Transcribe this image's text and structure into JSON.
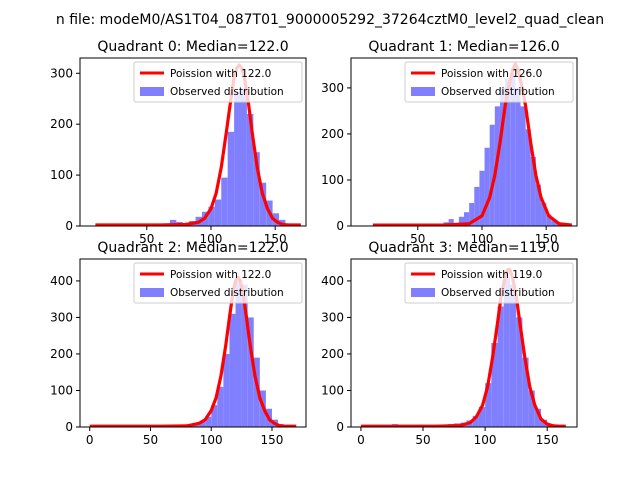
{
  "figure": {
    "suptitle": "n file: modeM0/AS1T04_087T01_9000005292_37264cztM0_level2_quad_clean"
  },
  "colors": {
    "fit_line": "#ff0000",
    "histogram": "#8080ff",
    "axis": "#000000"
  },
  "chart_data": [
    {
      "type": "bar",
      "title": "Quadrant 0: Median=122.0",
      "xlim": [
        -2,
        174
      ],
      "ylim": [
        0,
        330
      ],
      "xticks": [
        50,
        100,
        150
      ],
      "xtick_labels": [
        "50",
        "100",
        "150"
      ],
      "yticks": [
        0,
        100,
        200,
        300
      ],
      "ytick_labels": [
        "0",
        "100",
        "200",
        "300"
      ],
      "legend": {
        "placement": "top-right",
        "entries": [
          "Poission with 122.0",
          "Observed distribution"
        ]
      },
      "series": [
        {
          "name": "Observed distribution",
          "kind": "histogram",
          "bins": [
            [
              68,
              73,
              12
            ],
            [
              73,
              78,
              8
            ],
            [
              78,
              83,
              5
            ],
            [
              83,
              88,
              10
            ],
            [
              88,
              93,
              18
            ],
            [
              93,
              98,
              28
            ],
            [
              98,
              103,
              38
            ],
            [
              103,
              108,
              52
            ],
            [
              108,
              113,
              95
            ],
            [
              113,
              118,
              185
            ],
            [
              118,
              123,
              262
            ],
            [
              123,
              128,
              270
            ],
            [
              128,
              133,
              220
            ],
            [
              133,
              138,
              145
            ],
            [
              138,
              143,
              85
            ],
            [
              143,
              148,
              50
            ],
            [
              148,
              153,
              25
            ],
            [
              153,
              158,
              12
            ],
            [
              158,
              163,
              5
            ],
            [
              163,
              168,
              2
            ]
          ]
        },
        {
          "name": "Poission with 122.0",
          "kind": "line",
          "x": [
            10,
            60,
            80,
            90,
            95,
            100,
            104,
            108,
            112,
            115,
            118,
            120,
            122,
            124,
            126,
            129,
            132,
            136,
            140,
            144,
            148,
            152,
            156,
            160,
            170
          ],
          "y": [
            2,
            2,
            3,
            7,
            15,
            34,
            64,
            115,
            185,
            240,
            292,
            310,
            316,
            310,
            292,
            245,
            185,
            115,
            64,
            34,
            15,
            7,
            3,
            2,
            2
          ]
        }
      ]
    },
    {
      "type": "bar",
      "title": "Quadrant 1: Median=126.0",
      "xlim": [
        -2,
        174
      ],
      "ylim": [
        0,
        365
      ],
      "xticks": [
        50,
        100,
        150
      ],
      "xtick_labels": [
        "50",
        "100",
        "150"
      ],
      "yticks": [
        0,
        100,
        200,
        300
      ],
      "ytick_labels": [
        "0",
        "100",
        "200",
        "300"
      ],
      "legend": {
        "placement": "top-right",
        "entries": [
          "Poission with 126.0",
          "Observed distribution"
        ]
      },
      "series": [
        {
          "name": "Observed distribution",
          "kind": "histogram",
          "bins": [
            [
              70,
              74,
              8
            ],
            [
              74,
              78,
              15
            ],
            [
              78,
              82,
              5
            ],
            [
              82,
              86,
              20
            ],
            [
              86,
              90,
              30
            ],
            [
              90,
              94,
              50
            ],
            [
              94,
              98,
              85
            ],
            [
              98,
              102,
              120
            ],
            [
              102,
              106,
              170
            ],
            [
              106,
              110,
              220
            ],
            [
              110,
              114,
              260
            ],
            [
              114,
              118,
              300
            ],
            [
              118,
              122,
              320
            ],
            [
              122,
              126,
              330
            ],
            [
              126,
              130,
              300
            ],
            [
              130,
              134,
              260
            ],
            [
              134,
              138,
              210
            ],
            [
              138,
              142,
              150
            ],
            [
              142,
              146,
              90
            ],
            [
              146,
              150,
              50
            ],
            [
              150,
              154,
              25
            ],
            [
              154,
              158,
              12
            ],
            [
              158,
              162,
              4
            ]
          ]
        },
        {
          "name": "Poission with 126.0",
          "kind": "line",
          "x": [
            15,
            70,
            90,
            100,
            106,
            110,
            114,
            118,
            121,
            124,
            126,
            128,
            131,
            134,
            138,
            142,
            146,
            152,
            160,
            170
          ],
          "y": [
            2,
            2,
            5,
            22,
            62,
            110,
            180,
            260,
            305,
            340,
            352,
            340,
            305,
            260,
            180,
            110,
            62,
            22,
            5,
            2
          ]
        }
      ]
    },
    {
      "type": "bar",
      "title": "Quadrant 2: Median=122.0",
      "xlim": [
        -8,
        178
      ],
      "ylim": [
        0,
        460
      ],
      "xticks": [
        0,
        50,
        100,
        150
      ],
      "xtick_labels": [
        "0",
        "50",
        "100",
        "150"
      ],
      "yticks": [
        0,
        100,
        200,
        300,
        400
      ],
      "ytick_labels": [
        "0",
        "100",
        "200",
        "300",
        "400"
      ],
      "legend": {
        "placement": "top-right",
        "entries": [
          "Poission with 122.0",
          "Observed distribution"
        ]
      },
      "series": [
        {
          "name": "Observed distribution",
          "kind": "histogram",
          "bins": [
            [
              70,
              75,
              4
            ],
            [
              75,
              80,
              6
            ],
            [
              80,
              85,
              8
            ],
            [
              85,
              90,
              10
            ],
            [
              90,
              95,
              14
            ],
            [
              95,
              100,
              28
            ],
            [
              100,
              105,
              60
            ],
            [
              105,
              110,
              110
            ],
            [
              110,
              115,
              200
            ],
            [
              115,
              120,
              310
            ],
            [
              120,
              125,
              400
            ],
            [
              125,
              130,
              390
            ],
            [
              130,
              135,
              300
            ],
            [
              135,
              140,
              190
            ],
            [
              140,
              145,
              100
            ],
            [
              145,
              150,
              50
            ],
            [
              150,
              155,
              20
            ],
            [
              155,
              160,
              8
            ],
            [
              160,
              165,
              3
            ]
          ]
        },
        {
          "name": "Poission with 122.0",
          "kind": "line",
          "x": [
            0,
            60,
            80,
            90,
            95,
            100,
            104,
            108,
            112,
            115,
            118,
            120,
            122,
            124,
            126,
            129,
            132,
            136,
            140,
            144,
            148,
            152,
            156,
            160,
            170
          ],
          "y": [
            2,
            2,
            3,
            10,
            20,
            45,
            80,
            140,
            225,
            300,
            370,
            400,
            410,
            400,
            370,
            300,
            225,
            140,
            80,
            45,
            20,
            10,
            4,
            2,
            2
          ]
        }
      ]
    },
    {
      "type": "bar",
      "title": "Quadrant 3: Median=119.0",
      "xlim": [
        -8,
        174
      ],
      "ylim": [
        0,
        460
      ],
      "xticks": [
        0,
        50,
        100,
        150
      ],
      "xtick_labels": [
        "0",
        "50",
        "100",
        "150"
      ],
      "yticks": [
        0,
        100,
        200,
        300,
        400
      ],
      "ytick_labels": [
        "0",
        "100",
        "200",
        "300",
        "400"
      ],
      "legend": {
        "placement": "top-right",
        "entries": [
          "Poission with 119.0",
          "Observed distribution"
        ]
      },
      "series": [
        {
          "name": "Observed distribution",
          "kind": "histogram",
          "bins": [
            [
              10,
              15,
              5
            ],
            [
              25,
              30,
              8
            ],
            [
              45,
              50,
              6
            ],
            [
              60,
              65,
              5
            ],
            [
              70,
              75,
              8
            ],
            [
              75,
              80,
              10
            ],
            [
              80,
              85,
              12
            ],
            [
              85,
              90,
              18
            ],
            [
              90,
              95,
              30
            ],
            [
              95,
              100,
              55
            ],
            [
              100,
              105,
              120
            ],
            [
              105,
              110,
              230
            ],
            [
              110,
              115,
              330
            ],
            [
              115,
              120,
              410
            ],
            [
              120,
              125,
              390
            ],
            [
              125,
              130,
              300
            ],
            [
              130,
              135,
              190
            ],
            [
              135,
              140,
              100
            ],
            [
              140,
              145,
              50
            ],
            [
              145,
              150,
              20
            ],
            [
              150,
              155,
              8
            ],
            [
              155,
              160,
              3
            ]
          ]
        },
        {
          "name": "Poission with 119.0",
          "kind": "line",
          "x": [
            0,
            60,
            80,
            88,
            93,
            98,
            102,
            106,
            110,
            113,
            116,
            118,
            119,
            120,
            122,
            125,
            128,
            132,
            136,
            140,
            145,
            150,
            155,
            160,
            165
          ],
          "y": [
            2,
            2,
            4,
            12,
            28,
            60,
            110,
            190,
            285,
            360,
            410,
            430,
            432,
            430,
            410,
            360,
            285,
            190,
            110,
            60,
            22,
            8,
            3,
            2,
            2
          ]
        }
      ]
    }
  ]
}
